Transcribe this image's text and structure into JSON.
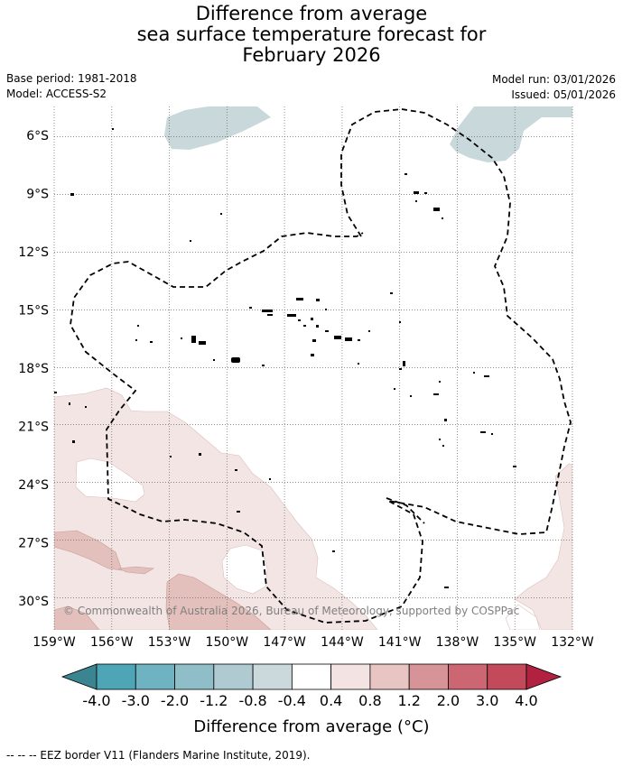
{
  "header": {
    "title_lines": [
      "Difference from average",
      "sea surface temperature forecast for",
      "February 2026"
    ],
    "base_period": "Base period: 1981-2018",
    "model": "Model: ACCESS-S2",
    "model_run": "Model run: 03/01/2026",
    "issued": "Issued: 05/01/2026"
  },
  "map": {
    "lat_labels": [
      "6°S",
      "9°S",
      "12°S",
      "15°S",
      "18°S",
      "21°S",
      "24°S",
      "27°S",
      "30°S"
    ],
    "lat_values": [
      -6,
      -9,
      -12,
      -15,
      -18,
      -21,
      -24,
      -27,
      -30
    ],
    "lon_labels": [
      "159°W",
      "156°W",
      "153°W",
      "150°W",
      "147°W",
      "144°W",
      "141°W",
      "138°W",
      "135°W",
      "132°W"
    ],
    "lon_values": [
      -159,
      -156,
      -153,
      -150,
      -147,
      -144,
      -141,
      -138,
      -135,
      -132
    ],
    "lon_range": [
      -159,
      -132
    ],
    "lat_range": [
      -4.5,
      -31.5
    ],
    "copyright": "© Commonwealth of Australia 2026, Bureau of Meteorology, supported by COSPPac"
  },
  "colorbar": {
    "tick_labels": [
      "-4.0",
      "-3.0",
      "-2.0",
      "-1.2",
      "-0.8",
      "-0.4",
      "0.4",
      "0.8",
      "1.2",
      "2.0",
      "3.0",
      "4.0"
    ],
    "colors": [
      "#3b8591",
      "#4ea5b5",
      "#6fb2c1",
      "#8fbdc8",
      "#afcbd1",
      "#cbd9dc",
      "#ffffff",
      "#f3e3e3",
      "#e8c4c3",
      "#d79498",
      "#cc6673",
      "#c34a5b",
      "#b0223f"
    ],
    "title": "Difference from average (°C)"
  },
  "footnote": "-- -- -- EEZ border V11 (Flanders Marine Institute, 2019).",
  "colors": {
    "cool_patch": "#c9d9db",
    "warm_light": "#f3e5e4",
    "warm_mid": "#e3c0bc",
    "eez_line": "#000000",
    "grid": "#666666"
  }
}
